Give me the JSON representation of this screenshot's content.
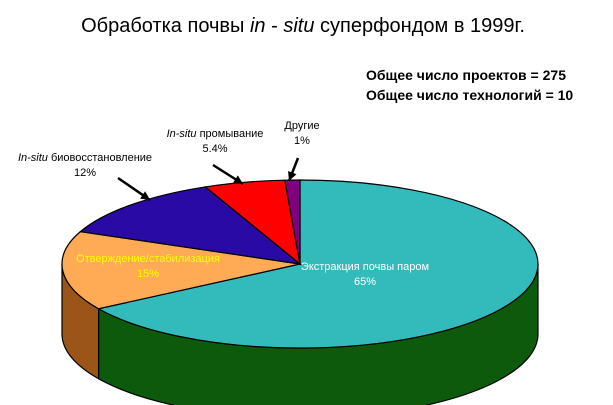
{
  "chart_data": {
    "type": "pie",
    "title_parts": [
      {
        "text": "Обработка почвы ",
        "italic": false
      },
      {
        "text": "in",
        "italic": true
      },
      {
        "text": " - ",
        "italic": false
      },
      {
        "text": "situ",
        "italic": true
      },
      {
        "text": " суперфондом в 1999г.",
        "italic": false
      }
    ],
    "summary_lines": [
      "Общее число проектов = 275",
      "Общее число технологий = 10"
    ],
    "slices": [
      {
        "key": "steam",
        "label_lines": [
          "Экстракция почвы паром"
        ],
        "italic_prefix": "",
        "value": 65,
        "value_label": "65%",
        "color": "#33bbbb",
        "side_color": "#0d5a0d",
        "label_color": "#ffffff"
      },
      {
        "key": "stab",
        "label_lines": [
          "Отверждение/стабилизация"
        ],
        "italic_prefix": "",
        "value": 15,
        "value_label": "15%",
        "color": "#ffaa55",
        "side_color": "#9b5518",
        "label_color": "#ffff00"
      },
      {
        "key": "bio",
        "label_lines": [
          " биовосстановление"
        ],
        "italic_prefix": "In-situ",
        "value": 12,
        "value_label": "12%",
        "color": "#2a0aa5",
        "side_color": "#150560",
        "label_color": "#000000"
      },
      {
        "key": "flush",
        "label_lines": [
          " промывание"
        ],
        "italic_prefix": "In-situ",
        "value": 5.4,
        "value_label": "5.4%",
        "color": "#ff0000",
        "side_color": "#8a0000",
        "label_color": "#000000"
      },
      {
        "key": "other",
        "label_lines": [
          "Другие"
        ],
        "italic_prefix": "",
        "value": 1,
        "value_label": "1%",
        "color": "#800080",
        "side_color": "#400040",
        "label_color": "#000000"
      }
    ],
    "colors": {
      "outline": "#000000",
      "background": "#ffffff"
    }
  }
}
